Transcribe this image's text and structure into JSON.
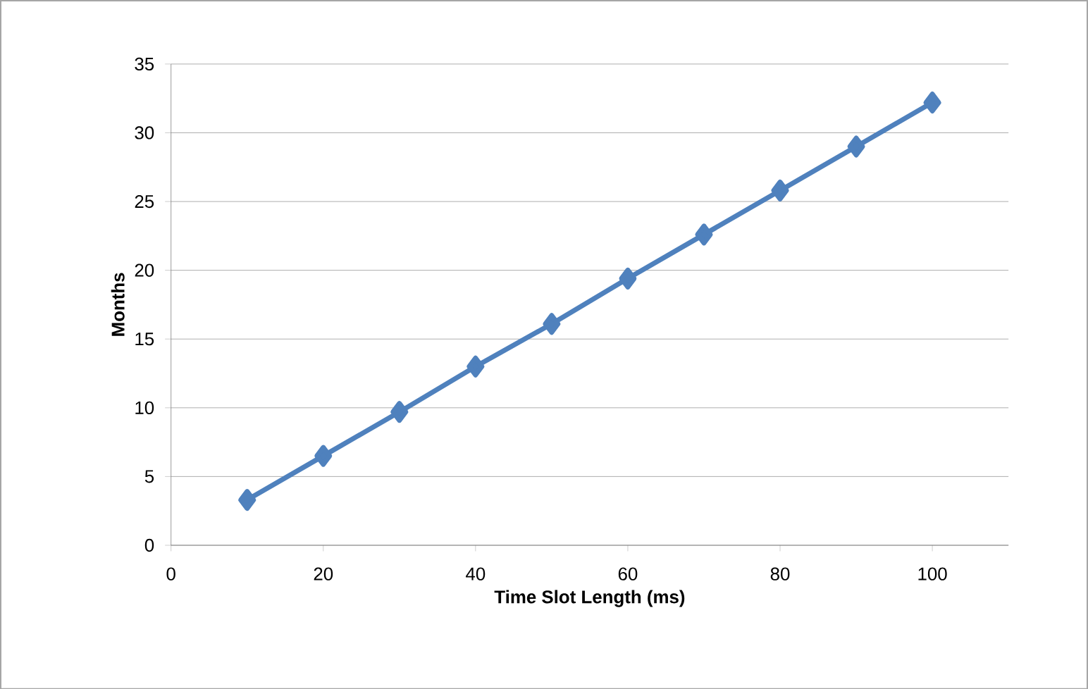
{
  "chart_data": {
    "type": "line",
    "xlabel": "Time Slot Length (ms)",
    "ylabel": "Months",
    "x": [
      10,
      20,
      30,
      40,
      50,
      60,
      70,
      80,
      90,
      100
    ],
    "series": [
      {
        "color": "#4f81bd",
        "values": [
          3.3,
          6.5,
          9.7,
          13.0,
          16.1,
          19.4,
          22.6,
          25.8,
          29.0,
          32.2
        ]
      }
    ],
    "xlim": [
      0,
      110
    ],
    "xticks": [
      0,
      20,
      40,
      60,
      80,
      100
    ],
    "ylim": [
      0,
      35
    ],
    "yticks": [
      0,
      5,
      10,
      15,
      20,
      25,
      30,
      35
    ],
    "grid": "y",
    "marker": "diamond",
    "line_style": "solid"
  }
}
